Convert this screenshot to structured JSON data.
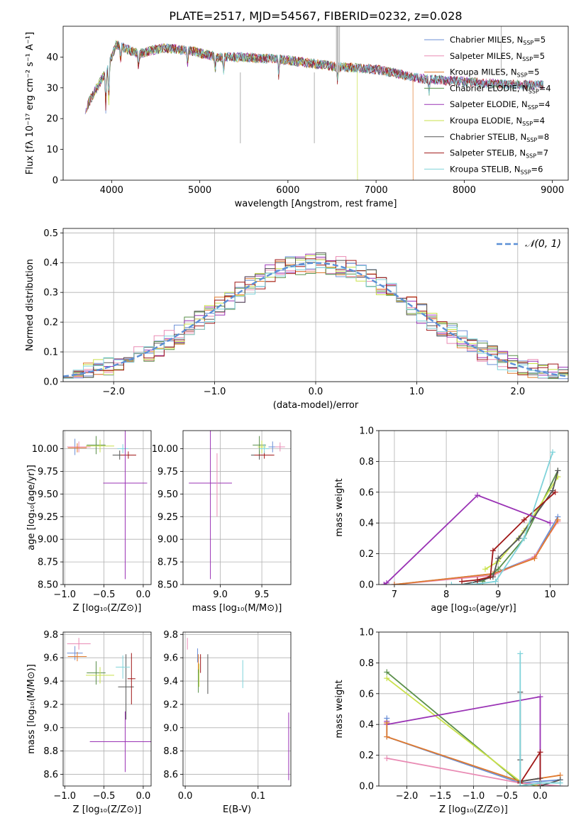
{
  "title": "PLATE=2517, MJD=54567, FIBERID=0232, z=0.028",
  "colors": {
    "chabrier_miles": "#6b8fd6",
    "salpeter_miles": "#e98bb4",
    "kroupa_miles": "#e07a2e",
    "chabrier_elodie": "#5a8f4a",
    "salpeter_elodie": "#9a33b5",
    "kroupa_elodie": "#c9e14a",
    "chabrier_stelib": "#555555",
    "salpeter_stelib": "#a01818",
    "kroupa_stelib": "#7fd3da",
    "normal": "#5b8fd6"
  },
  "legend": [
    {
      "key": "chabrier_miles",
      "text": "Chabrier MILES, N",
      "n": "5"
    },
    {
      "key": "salpeter_miles",
      "text": "Salpeter MILES, N",
      "n": "5"
    },
    {
      "key": "kroupa_miles",
      "text": "Kroupa MILES, N",
      "n": "5"
    },
    {
      "key": "chabrier_elodie",
      "text": "Chabrier ELODIE, N",
      "n": "4"
    },
    {
      "key": "salpeter_elodie",
      "text": "Salpeter ELODIE, N",
      "n": "4"
    },
    {
      "key": "kroupa_elodie",
      "text": "Kroupa ELODIE, N",
      "n": "4"
    },
    {
      "key": "chabrier_stelib",
      "text": "Chabrier STELIB, N",
      "n": "8"
    },
    {
      "key": "salpeter_stelib",
      "text": "Salpeter STELIB, N",
      "n": "7"
    },
    {
      "key": "kroupa_stelib",
      "text": "Kroupa STELIB, N",
      "n": "6"
    }
  ],
  "legend_sub": "SSP",
  "normal_label": "𝒩(0, 1)",
  "chart_data": [
    {
      "type": "line",
      "id": "spectrum",
      "xlabel": "wavelength [Angstrom, rest frame]",
      "ylabel": "Flux [fλ 10⁻¹⁷ erg cm⁻² s⁻¹ A⁻¹]",
      "xlim": [
        3450,
        9180
      ],
      "ylim": [
        0,
        50
      ],
      "xticks": [
        4000,
        5000,
        6000,
        7000,
        8000,
        9000
      ],
      "yticks": [
        0,
        10,
        20,
        30,
        40
      ],
      "continuum_x": [
        3700,
        3850,
        3950,
        4050,
        4300,
        4600,
        4900,
        5200,
        5500,
        6000,
        6500,
        7000,
        7500,
        8000,
        8500,
        8900
      ],
      "continuum_y": [
        23,
        31,
        36,
        44,
        41,
        43,
        42,
        40,
        40,
        39,
        37,
        36,
        33,
        32,
        31,
        31
      ],
      "drops": [
        {
          "series": "kroupa_miles",
          "x": 7420
        },
        {
          "series": "kroupa_elodie",
          "x": 6790
        }
      ]
    },
    {
      "type": "area",
      "id": "residuals",
      "xlabel": "(data-model)/error",
      "ylabel": "Normed distribution",
      "xlim": [
        -2.5,
        2.5
      ],
      "ylim": [
        0,
        0.515
      ],
      "xticks": [
        -2,
        -1,
        0,
        1,
        2
      ],
      "yticks": [
        0.0,
        0.1,
        0.2,
        0.3,
        0.4,
        0.5
      ],
      "bin_width": 0.1
    },
    {
      "type": "scatter",
      "id": "age_vs_Z",
      "xlabel": "Z [log₁₀(Z/Z⊙)]",
      "ylabel": "age  [log₁₀(age/yr)]",
      "xlim": [
        -1.02,
        0.1
      ],
      "ylim": [
        8.5,
        10.2
      ],
      "xticks": [
        -1.0,
        -0.5,
        0.0
      ],
      "yticks": [
        8.5,
        8.75,
        9.0,
        9.25,
        9.5,
        9.75,
        10.0
      ],
      "points": [
        {
          "s": "chabrier_miles",
          "x": -0.87,
          "y": 10.02,
          "xe": 0.1,
          "ye": 0.09
        },
        {
          "s": "salpeter_miles",
          "x": -0.82,
          "y": 10.02,
          "xe": 0.15,
          "ye": 0.06
        },
        {
          "s": "kroupa_miles",
          "x": -0.84,
          "y": 10.01,
          "xe": 0.12,
          "ye": 0.05
        },
        {
          "s": "chabrier_elodie",
          "x": -0.6,
          "y": 10.04,
          "xe": 0.12,
          "ye": 0.1
        },
        {
          "s": "kroupa_elodie",
          "x": -0.55,
          "y": 10.03,
          "xe": 0.18,
          "ye": 0.07
        },
        {
          "s": "chabrier_stelib",
          "x": -0.3,
          "y": 9.93,
          "xe": 0.09,
          "ye": 0.05
        },
        {
          "s": "salpeter_stelib",
          "x": -0.19,
          "y": 9.93,
          "xe": 0.1,
          "ye": 0.04
        },
        {
          "s": "kroupa_stelib",
          "x": -0.26,
          "y": 10.0,
          "xe": 0.07,
          "ye": 0.05
        },
        {
          "s": "salpeter_elodie",
          "x": -0.23,
          "y": 9.62,
          "xe": 0.28,
          "ye": 1.06
        }
      ]
    },
    {
      "type": "scatter",
      "id": "age_vs_mass",
      "xlabel": "mass [log₁₀(M/M⊙)]",
      "ylabel": "",
      "xlim": [
        8.55,
        9.85
      ],
      "ylim": [
        8.5,
        10.2
      ],
      "xticks": [
        9.0,
        9.5
      ],
      "yticks": [
        8.5,
        8.75,
        9.0,
        9.25,
        9.5,
        9.75,
        10.0
      ],
      "points": [
        {
          "s": "salpeter_elodie",
          "x": 8.88,
          "y": 9.62,
          "xe": 0.26,
          "ye": 1.06
        },
        {
          "s": "salpeter_miles",
          "x": 8.96,
          "y": 9.6,
          "xe": 0.0,
          "ye": 0.35
        },
        {
          "s": "chabrier_stelib",
          "x": 9.47,
          "y": 9.93,
          "xe": 0.1,
          "ye": 0.05
        },
        {
          "s": "salpeter_stelib",
          "x": 9.53,
          "y": 9.93,
          "xe": 0.12,
          "ye": 0.04
        },
        {
          "s": "chabrier_elodie",
          "x": 9.47,
          "y": 10.04,
          "xe": 0.08,
          "ye": 0.1
        },
        {
          "s": "kroupa_elodie",
          "x": 9.5,
          "y": 10.02,
          "xe": 0.05,
          "ye": 0.07
        },
        {
          "s": "chabrier_miles",
          "x": 9.63,
          "y": 10.02,
          "xe": 0.05,
          "ye": 0.06
        },
        {
          "s": "salpeter_miles",
          "x": 9.72,
          "y": 10.02,
          "xe": 0.06,
          "ye": 0.05
        },
        {
          "s": "kroupa_stelib",
          "x": 9.53,
          "y": 10.0,
          "xe": 0.06,
          "ye": 0.05
        }
      ]
    },
    {
      "type": "line",
      "id": "weight_vs_age",
      "xlabel": "age  [log₁₀(age/yr)]",
      "ylabel": "mass weight",
      "xlim": [
        6.7,
        10.35
      ],
      "ylim": [
        0,
        1.0
      ],
      "xticks": [
        7,
        8,
        9,
        10
      ],
      "yticks": [
        0.0,
        0.2,
        0.4,
        0.6,
        0.8,
        1.0
      ],
      "series": [
        {
          "s": "chabrier_miles",
          "x": [
            7.0,
            8.9,
            9.7,
            10.15
          ],
          "y": [
            0.0,
            0.07,
            0.18,
            0.44
          ]
        },
        {
          "s": "salpeter_miles",
          "x": [
            7.0,
            8.9,
            9.7,
            10.15
          ],
          "y": [
            0.0,
            0.06,
            0.18,
            0.41
          ]
        },
        {
          "s": "kroupa_miles",
          "x": [
            7.0,
            8.9,
            9.7,
            10.15
          ],
          "y": [
            0.0,
            0.07,
            0.17,
            0.42
          ]
        },
        {
          "s": "chabrier_elodie",
          "x": [
            8.7,
            9.0,
            9.5,
            10.15
          ],
          "y": [
            0.02,
            0.1,
            0.3,
            0.74
          ]
        },
        {
          "s": "kroupa_elodie",
          "x": [
            8.75,
            9.0,
            9.5,
            10.15
          ],
          "y": [
            0.1,
            0.15,
            0.35,
            0.7
          ]
        },
        {
          "s": "chabrier_stelib",
          "x": [
            8.3,
            8.6,
            8.9,
            9.0,
            9.4,
            10.05,
            10.15
          ],
          "y": [
            0.0,
            0.02,
            0.05,
            0.17,
            0.3,
            0.61,
            0.74
          ]
        },
        {
          "s": "salpeter_stelib",
          "x": [
            8.3,
            8.6,
            8.85,
            8.9,
            9.5,
            10.1
          ],
          "y": [
            0.02,
            0.03,
            0.05,
            0.22,
            0.42,
            0.6
          ]
        },
        {
          "s": "kroupa_stelib",
          "x": [
            8.1,
            8.5,
            8.95,
            9.5,
            10.05
          ],
          "y": [
            0.0,
            0.0,
            0.02,
            0.3,
            0.86
          ]
        },
        {
          "s": "salpeter_elodie",
          "x": [
            6.8,
            6.85,
            8.6,
            10.0
          ],
          "y": [
            0.0,
            0.01,
            0.58,
            0.4
          ]
        }
      ]
    },
    {
      "type": "scatter",
      "id": "mass_vs_Z",
      "xlabel": "Z [log₁₀(Z/Z⊙)]",
      "ylabel": "mass [log₁₀(M/M⊙)]",
      "xlim": [
        -1.02,
        0.1
      ],
      "ylim": [
        8.5,
        9.82
      ],
      "xticks": [
        -1.0,
        -0.5,
        0.0
      ],
      "yticks": [
        8.6,
        8.8,
        9.0,
        9.2,
        9.4,
        9.6,
        9.8
      ],
      "points": [
        {
          "s": "salpeter_miles",
          "x": -0.82,
          "y": 9.72,
          "xe": 0.15,
          "ye": 0.05
        },
        {
          "s": "chabrier_miles",
          "x": -0.87,
          "y": 9.64,
          "xe": 0.1,
          "ye": 0.06
        },
        {
          "s": "kroupa_miles",
          "x": -0.84,
          "y": 9.61,
          "xe": 0.12,
          "ye": 0.04
        },
        {
          "s": "chabrier_elodie",
          "x": -0.6,
          "y": 9.47,
          "xe": 0.12,
          "ye": 0.1
        },
        {
          "s": "kroupa_elodie",
          "x": -0.55,
          "y": 9.45,
          "xe": 0.18,
          "ye": 0.07
        },
        {
          "s": "chabrier_stelib",
          "x": -0.22,
          "y": 9.35,
          "xe": 0.1,
          "ye": 0.28
        },
        {
          "s": "salpeter_stelib",
          "x": -0.15,
          "y": 9.42,
          "xe": 0.05,
          "ye": 0.22
        },
        {
          "s": "kroupa_stelib",
          "x": -0.26,
          "y": 9.52,
          "xe": 0.09,
          "ye": 0.1
        },
        {
          "s": "salpeter_elodie",
          "x": -0.23,
          "y": 8.88,
          "xe": 0.45,
          "ye": 0.26
        }
      ]
    },
    {
      "type": "scatter",
      "id": "mass_vs_ebv",
      "xlabel": "E(B-V)",
      "ylabel": "",
      "xlim": [
        -0.003,
        0.145
      ],
      "ylim": [
        8.5,
        9.82
      ],
      "xticks": [
        0.0,
        0.1
      ],
      "yticks": [
        8.6,
        8.8,
        9.0,
        9.2,
        9.4,
        9.6,
        9.8
      ],
      "points": [
        {
          "s": "salpeter_miles",
          "x": 0.003,
          "y": 9.72,
          "xe": 0.0,
          "ye": 0.05
        },
        {
          "s": "chabrier_miles",
          "x": 0.017,
          "y": 9.62,
          "xe": 0.0,
          "ye": 0.06
        },
        {
          "s": "kroupa_miles",
          "x": 0.018,
          "y": 9.55,
          "xe": 0.0,
          "ye": 0.08
        },
        {
          "s": "chabrier_elodie",
          "x": 0.018,
          "y": 9.4,
          "xe": 0.0,
          "ye": 0.1
        },
        {
          "s": "kroupa_elodie",
          "x": 0.019,
          "y": 9.45,
          "xe": 0.0,
          "ye": 0.1
        },
        {
          "s": "salpeter_stelib",
          "x": 0.021,
          "y": 9.55,
          "xe": 0.0,
          "ye": 0.08
        },
        {
          "s": "chabrier_stelib",
          "x": 0.031,
          "y": 9.46,
          "xe": 0.0,
          "ye": 0.17
        },
        {
          "s": "kroupa_stelib",
          "x": 0.079,
          "y": 9.46,
          "xe": 0.0,
          "ye": 0.12
        },
        {
          "s": "salpeter_elodie",
          "x": 0.142,
          "y": 8.84,
          "xe": 0.0,
          "ye": 0.29
        }
      ]
    },
    {
      "type": "line",
      "id": "weight_vs_Z",
      "xlabel": "Z [log₁₀(Z/Z⊙)]",
      "ylabel": "mass weight",
      "xlim": [
        -2.42,
        0.42
      ],
      "ylim": [
        0,
        1.0
      ],
      "xticks": [
        -2.0,
        -1.5,
        -1.0,
        -0.5,
        0.0
      ],
      "yticks": [
        0.0,
        0.2,
        0.4,
        0.6,
        0.8,
        1.0
      ],
      "series": [
        {
          "s": "chabrier_elodie",
          "x": [
            -2.3,
            -0.3,
            0.0
          ],
          "y": [
            0.74,
            0.02,
            0.0
          ]
        },
        {
          "s": "kroupa_elodie",
          "x": [
            -2.3,
            -0.3,
            0.0
          ],
          "y": [
            0.7,
            0.03,
            0.0
          ]
        },
        {
          "s": "salpeter_elodie",
          "x": [
            -2.3,
            -2.3,
            0.0,
            0.0
          ],
          "y": [
            0.42,
            0.4,
            0.58,
            0.0
          ]
        },
        {
          "s": "chabrier_miles",
          "x": [
            -2.3,
            -2.3,
            -0.3,
            0.3
          ],
          "y": [
            0.44,
            0.32,
            0.02,
            0.04
          ]
        },
        {
          "s": "salpeter_miles",
          "x": [
            -2.3,
            -0.3,
            0.3
          ],
          "y": [
            0.18,
            0.02,
            0.0
          ]
        },
        {
          "s": "kroupa_miles",
          "x": [
            -2.3,
            -2.3,
            -0.3,
            0.3
          ],
          "y": [
            0.41,
            0.32,
            0.03,
            0.07
          ]
        },
        {
          "s": "chabrier_stelib",
          "x": [
            -0.3,
            -0.3,
            -0.3,
            0.0,
            0.0,
            0.3
          ],
          "y": [
            0.61,
            0.17,
            0.03,
            0.05,
            0.0,
            0.04
          ]
        },
        {
          "s": "salpeter_stelib",
          "x": [
            -0.3,
            0.0,
            0.0
          ],
          "y": [
            0.02,
            0.22,
            0.0
          ]
        },
        {
          "s": "kroupa_stelib",
          "x": [
            -0.3,
            -0.3,
            0.0,
            0.3
          ],
          "y": [
            0.86,
            0.0,
            0.02,
            0.02
          ]
        }
      ]
    }
  ]
}
